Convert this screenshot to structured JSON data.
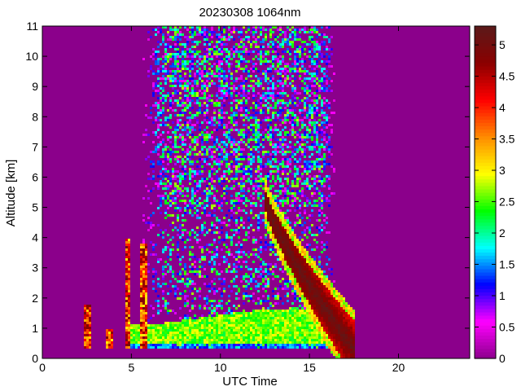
{
  "chart_data": {
    "type": "heatmap",
    "title": "20230308 1064nm",
    "xlabel": "UTC Time",
    "ylabel": "Altitude [km]",
    "xlim": [
      0,
      24
    ],
    "ylim": [
      0,
      11
    ],
    "x_ticks": [
      0,
      5,
      10,
      15,
      20
    ],
    "y_ticks": [
      0,
      1,
      2,
      3,
      4,
      5,
      6,
      7,
      8,
      9,
      10,
      11
    ],
    "colorbar": {
      "range": [
        0,
        5.3
      ],
      "ticks": [
        0,
        0.5,
        1,
        1.5,
        2,
        2.5,
        3,
        3.5,
        4,
        4.5,
        5
      ],
      "colors": [
        "#8b008b",
        "#ff00ff",
        "#0000ff",
        "#00ffff",
        "#00ff00",
        "#ffff00",
        "#ff8c00",
        "#ff0000",
        "#8b0000",
        "#5a1a1a"
      ]
    },
    "background_value": 0,
    "features": [
      {
        "label": "boundary-layer aerosol",
        "t_start": 4.8,
        "t_end": 16.5,
        "alt_min": 0.3,
        "alt_max": 1.7,
        "value": 2.5
      },
      {
        "label": "descending layer",
        "t_start": 12.5,
        "t_end": 17.5,
        "alt_start": 5.3,
        "alt_end": 0.3,
        "value": 5.0
      },
      {
        "label": "early plumes",
        "t": [
          2.5,
          3.8,
          4.8,
          5.7
        ],
        "alt_max": [
          1.8,
          1.0,
          4.0,
          3.8
        ],
        "value": 4.5
      },
      {
        "label": "upper noise",
        "t_start": 5.5,
        "t_end": 16.5,
        "alt_min": 5.0,
        "alt_max": 11,
        "value": 1.5
      }
    ]
  }
}
